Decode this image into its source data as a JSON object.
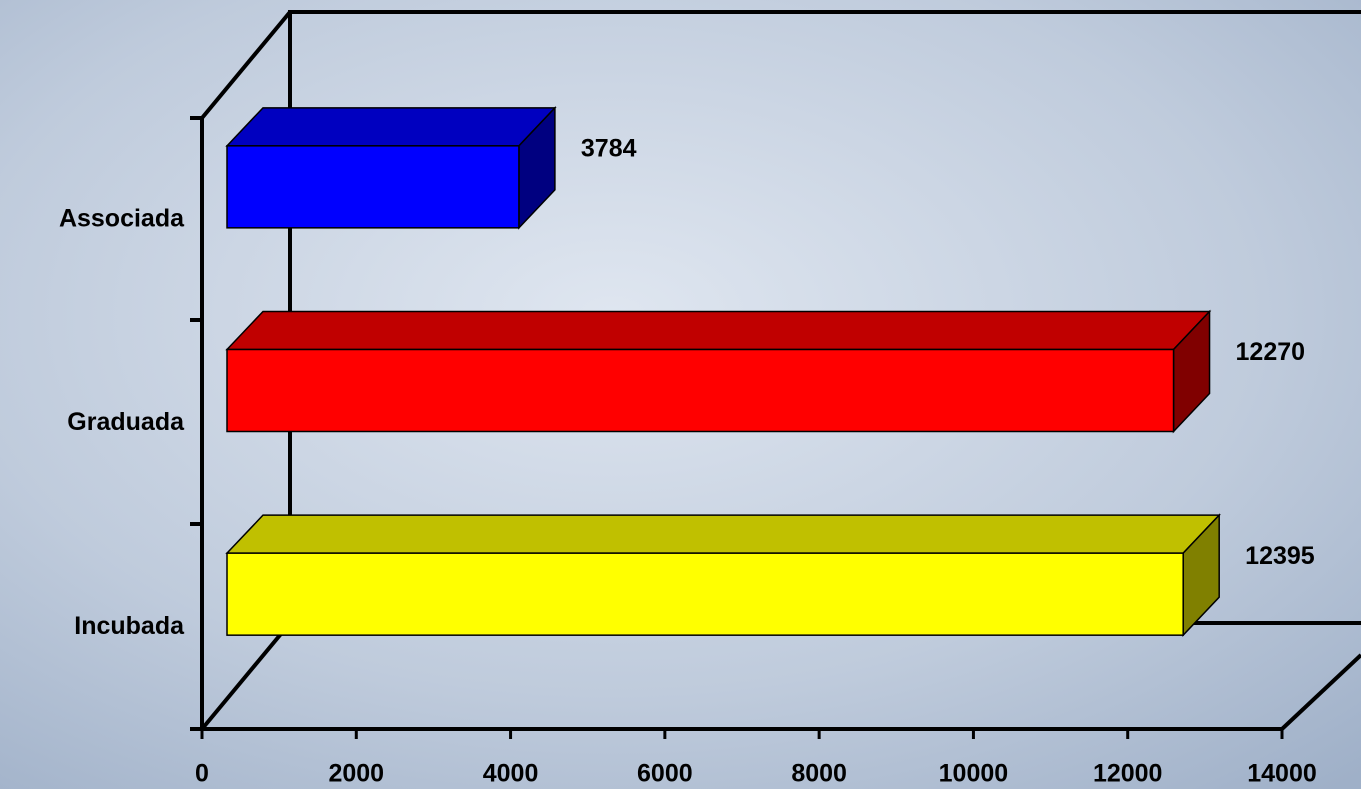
{
  "chart_data": {
    "type": "bar3d_horizontal",
    "categories": [
      "Associada",
      "Graduada",
      "Incubada"
    ],
    "values": [
      3784,
      12270,
      12395
    ],
    "colors": [
      "#0000ff",
      "#ff0000",
      "#ffff00"
    ],
    "top_colors": [
      "#0000c0",
      "#c00000",
      "#c0c000"
    ],
    "side_colors": [
      "#000080",
      "#800000",
      "#808000"
    ],
    "xlim": [
      0,
      14000
    ],
    "xticks": [
      0,
      2000,
      4000,
      6000,
      8000,
      10000,
      12000,
      14000
    ]
  }
}
